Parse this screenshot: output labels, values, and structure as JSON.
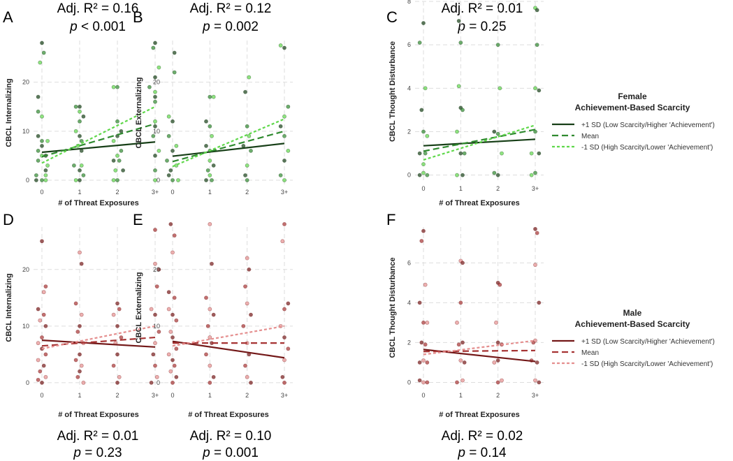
{
  "colors": {
    "female": [
      "#173f17",
      "#2f8a2f",
      "#5fd84a"
    ],
    "male": [
      "#731818",
      "#a63333",
      "#e58f8f"
    ]
  },
  "legends": [
    {
      "group": "female",
      "title1": "Female",
      "title2": "Achievement-Based Scarcity",
      "items": [
        "+1 SD (Low Scarcity/Higher 'Achievement')",
        "Mean",
        "-1 SD (High Scarcity/Lower 'Achievement')"
      ]
    },
    {
      "group": "male",
      "title1": "Male",
      "title2": "Achievement-Based Scarcity",
      "items": [
        "+1 SD (Low Scarcity/Higher 'Achievement')",
        "Mean",
        "-1 SD (High Scarcity/Lower 'Achievement')"
      ]
    }
  ],
  "chart_data": [
    {
      "type": "scatter",
      "panel": "A",
      "group": "female",
      "title": "Adj. R² = 0.16",
      "p": "p < 0.001",
      "xlabel": "# of Threat Exposures",
      "ylabel": "CBCL Internalizing",
      "xticks": [
        "0",
        "1",
        "2",
        "3+"
      ],
      "yticks": [
        0,
        10,
        20
      ],
      "ylim": [
        -1,
        28.5
      ],
      "lines": [
        [
          5.7,
          7.8
        ],
        [
          4.8,
          11.5
        ],
        [
          3.5,
          15
        ]
      ],
      "points": [
        [
          0,
          28
        ],
        [
          0.05,
          26
        ],
        [
          -0.05,
          24
        ],
        [
          -0.1,
          17
        ],
        [
          -0.1,
          14
        ],
        [
          0,
          13
        ],
        [
          -0.1,
          9
        ],
        [
          0,
          8
        ],
        [
          0.15,
          8
        ],
        [
          0,
          7
        ],
        [
          -0.1,
          6
        ],
        [
          0,
          5
        ],
        [
          0.1,
          5
        ],
        [
          -0.1,
          4
        ],
        [
          0.15,
          3
        ],
        [
          0.1,
          2
        ],
        [
          -0.15,
          1
        ],
        [
          0.1,
          1
        ],
        [
          -0.15,
          0
        ],
        [
          0,
          0
        ],
        [
          0.1,
          0
        ],
        [
          1,
          15
        ],
        [
          0.9,
          15
        ],
        [
          1,
          14
        ],
        [
          1.1,
          13
        ],
        [
          1,
          12
        ],
        [
          0.9,
          10
        ],
        [
          1,
          9
        ],
        [
          1.05,
          8
        ],
        [
          0.95,
          7
        ],
        [
          1.05,
          6
        ],
        [
          0.85,
          3
        ],
        [
          1.05,
          3
        ],
        [
          1,
          2
        ],
        [
          1.1,
          1
        ],
        [
          0.9,
          0
        ],
        [
          1,
          0
        ],
        [
          2,
          19
        ],
        [
          1.9,
          19
        ],
        [
          2.1,
          10
        ],
        [
          2,
          12
        ],
        [
          1.9,
          8
        ],
        [
          2,
          9
        ],
        [
          2.1,
          6
        ],
        [
          2,
          5
        ],
        [
          1.9,
          4
        ],
        [
          2.05,
          4
        ],
        [
          1.95,
          2
        ],
        [
          2.15,
          2
        ],
        [
          2,
          0
        ],
        [
          1.9,
          0
        ],
        [
          3,
          28
        ],
        [
          2.95,
          27
        ],
        [
          3.1,
          23
        ],
        [
          3,
          21
        ],
        [
          2.85,
          19
        ],
        [
          3,
          18
        ],
        [
          3,
          17
        ],
        [
          3,
          16
        ],
        [
          3,
          12
        ],
        [
          3,
          11
        ],
        [
          2.95,
          9
        ],
        [
          3.1,
          6
        ],
        [
          3,
          5
        ],
        [
          3,
          2
        ],
        [
          3,
          0
        ]
      ]
    },
    {
      "type": "scatter",
      "panel": "B",
      "group": "female",
      "title": "Adj. R² = 0.12",
      "p": "p = 0.002",
      "xlabel": "",
      "ylabel": "CBCL Externalizing",
      "xticks": [
        "0",
        "1",
        "2",
        "3+"
      ],
      "yticks": [
        0,
        10,
        20
      ],
      "ylim": [
        -1,
        28.5
      ],
      "lines": [
        [
          4.9,
          7.5
        ],
        [
          3.8,
          10
        ],
        [
          2.8,
          12.5
        ]
      ],
      "points": [
        [
          0.05,
          26
        ],
        [
          0.05,
          22
        ],
        [
          -0.1,
          13
        ],
        [
          0,
          12
        ],
        [
          -0.1,
          9
        ],
        [
          0.1,
          7
        ],
        [
          0,
          6
        ],
        [
          -0.15,
          4
        ],
        [
          0.1,
          3
        ],
        [
          -0.1,
          1
        ],
        [
          0,
          0
        ],
        [
          0.15,
          0
        ],
        [
          -0.05,
          2
        ],
        [
          1,
          17
        ],
        [
          1.1,
          17
        ],
        [
          0.9,
          12
        ],
        [
          1,
          11
        ],
        [
          1.05,
          9
        ],
        [
          0.9,
          7
        ],
        [
          1,
          6
        ],
        [
          1,
          4
        ],
        [
          1.1,
          3
        ],
        [
          0.95,
          2
        ],
        [
          1,
          1
        ],
        [
          0.9,
          0
        ],
        [
          1.05,
          0
        ],
        [
          2.05,
          21
        ],
        [
          1.95,
          18
        ],
        [
          2,
          11
        ],
        [
          2.05,
          9
        ],
        [
          1.9,
          7
        ],
        [
          2.1,
          6
        ],
        [
          2,
          3
        ],
        [
          1.95,
          1
        ],
        [
          2,
          0
        ],
        [
          2.9,
          27.5
        ],
        [
          3,
          27
        ],
        [
          3.1,
          15
        ],
        [
          3,
          13
        ],
        [
          2.9,
          11
        ],
        [
          3,
          9
        ],
        [
          3.1,
          6
        ],
        [
          3,
          4
        ],
        [
          2.9,
          1
        ],
        [
          3,
          0
        ]
      ]
    },
    {
      "type": "scatter",
      "panel": "C",
      "group": "female",
      "title": "Adj. R² = 0.01",
      "p": "p = 0.25",
      "xlabel": "# of Threat Exposures",
      "ylabel": "CBCL Thought Disturbance",
      "xticks": [
        "0",
        "1",
        "2",
        "3+"
      ],
      "yticks": [
        0,
        2,
        4,
        6,
        8
      ],
      "ylim": [
        -0.3,
        8
      ],
      "lines": [
        [
          1.35,
          1.65
        ],
        [
          1.1,
          2.1
        ],
        [
          0.7,
          2.3
        ]
      ],
      "points": [
        [
          0,
          7
        ],
        [
          -0.1,
          6.1
        ],
        [
          0.05,
          4
        ],
        [
          -0.05,
          3
        ],
        [
          0,
          2
        ],
        [
          0.1,
          1.8
        ],
        [
          -0.1,
          1
        ],
        [
          0.05,
          1
        ],
        [
          0,
          0.5
        ],
        [
          -0.1,
          0
        ],
        [
          0.1,
          0
        ],
        [
          0,
          0.1
        ],
        [
          0.95,
          7.1
        ],
        [
          1,
          6.1
        ],
        [
          0.95,
          4.1
        ],
        [
          1,
          3.1
        ],
        [
          1.05,
          3
        ],
        [
          0.9,
          2
        ],
        [
          1,
          1
        ],
        [
          1.1,
          1
        ],
        [
          0.9,
          0
        ],
        [
          1.05,
          0
        ],
        [
          2,
          6
        ],
        [
          2.05,
          4
        ],
        [
          1.9,
          2
        ],
        [
          2,
          1.9
        ],
        [
          2.1,
          1
        ],
        [
          2,
          0
        ],
        [
          1.9,
          0.1
        ],
        [
          3,
          7.7
        ],
        [
          3.05,
          7.6
        ],
        [
          3.05,
          6
        ],
        [
          3,
          4
        ],
        [
          3.1,
          3.9
        ],
        [
          3,
          2
        ],
        [
          2.9,
          1
        ],
        [
          3.1,
          1
        ],
        [
          3,
          0.1
        ],
        [
          2.9,
          0
        ]
      ]
    },
    {
      "type": "scatter",
      "panel": "D",
      "group": "male",
      "title": "Adj. R² = 0.01",
      "p": "p = 0.23",
      "xlabel": "# of Threat Exposures",
      "ylabel": "CBCL Internalizing",
      "xticks": [
        "0",
        "1",
        "2",
        "3+"
      ],
      "yticks": [
        0,
        10,
        20
      ],
      "ylim": [
        -1,
        27.5
      ],
      "lines": [
        [
          7.5,
          6.3
        ],
        [
          6.5,
          8
        ],
        [
          6,
          10
        ]
      ],
      "points": [
        [
          0,
          25
        ],
        [
          0.1,
          17
        ],
        [
          0.05,
          16
        ],
        [
          -0.1,
          13
        ],
        [
          0.05,
          12
        ],
        [
          -0.05,
          11
        ],
        [
          0.1,
          10
        ],
        [
          0,
          8
        ],
        [
          -0.1,
          7
        ],
        [
          0,
          6
        ],
        [
          0.1,
          5
        ],
        [
          -0.1,
          4
        ],
        [
          0.05,
          3
        ],
        [
          -0.05,
          2
        ],
        [
          0.1,
          1
        ],
        [
          0,
          0
        ],
        [
          -0.1,
          0.5
        ],
        [
          1,
          23
        ],
        [
          1.05,
          21
        ],
        [
          0.9,
          14
        ],
        [
          1.05,
          12
        ],
        [
          1,
          10
        ],
        [
          0.95,
          9
        ],
        [
          1.1,
          7
        ],
        [
          1,
          5
        ],
        [
          0.9,
          4
        ],
        [
          1.05,
          3
        ],
        [
          1,
          2
        ],
        [
          0.95,
          1
        ],
        [
          1.1,
          0
        ],
        [
          2,
          14
        ],
        [
          2.05,
          13
        ],
        [
          1.9,
          12
        ],
        [
          2,
          10
        ],
        [
          2.1,
          8
        ],
        [
          1.95,
          7
        ],
        [
          2,
          5
        ],
        [
          1.9,
          3
        ],
        [
          2.05,
          1
        ],
        [
          2,
          0
        ],
        [
          3,
          27
        ],
        [
          3,
          21
        ],
        [
          3.1,
          20
        ],
        [
          3.05,
          17
        ],
        [
          2.9,
          13
        ],
        [
          3,
          12
        ],
        [
          3.1,
          9
        ],
        [
          3,
          7
        ],
        [
          2.95,
          5
        ],
        [
          3,
          3
        ],
        [
          3.05,
          1
        ],
        [
          2.9,
          0
        ]
      ]
    },
    {
      "type": "scatter",
      "panel": "E",
      "group": "male",
      "title": "Adj. R² = 0.10",
      "p": "p = 0.001",
      "xlabel": "# of Threat Exposures",
      "ylabel": "CBCL Externalizing",
      "xticks": [
        "0",
        "1",
        "2",
        "3+"
      ],
      "yticks": [
        0,
        10,
        20
      ],
      "ylim": [
        -1,
        27.5
      ],
      "lines": [
        [
          7.3,
          4.4
        ],
        [
          7,
          7
        ],
        [
          6.5,
          10
        ]
      ],
      "points": [
        [
          -0.05,
          28
        ],
        [
          0.05,
          26
        ],
        [
          0,
          23
        ],
        [
          -0.1,
          16
        ],
        [
          0.05,
          15
        ],
        [
          -0.1,
          13
        ],
        [
          0,
          12
        ],
        [
          0.1,
          11
        ],
        [
          -0.05,
          9
        ],
        [
          0,
          8
        ],
        [
          0.1,
          6
        ],
        [
          -0.1,
          5
        ],
        [
          0,
          4
        ],
        [
          0.05,
          3
        ],
        [
          -0.05,
          2
        ],
        [
          0.1,
          1
        ],
        [
          0,
          0
        ],
        [
          1,
          28
        ],
        [
          1.05,
          21
        ],
        [
          0.9,
          15
        ],
        [
          1,
          13
        ],
        [
          1.1,
          12
        ],
        [
          0.95,
          10
        ],
        [
          1,
          8
        ],
        [
          1.05,
          7
        ],
        [
          0.9,
          5
        ],
        [
          1,
          3
        ],
        [
          1.1,
          1
        ],
        [
          1,
          0
        ],
        [
          2,
          22
        ],
        [
          2.05,
          20
        ],
        [
          1.95,
          17
        ],
        [
          2,
          14
        ],
        [
          2.1,
          12
        ],
        [
          1.9,
          10
        ],
        [
          2,
          7
        ],
        [
          2.05,
          5
        ],
        [
          1.95,
          3
        ],
        [
          2,
          1
        ],
        [
          2.1,
          0
        ],
        [
          3,
          28
        ],
        [
          2.95,
          25
        ],
        [
          3.1,
          14
        ],
        [
          3,
          13
        ],
        [
          2.9,
          10
        ],
        [
          3,
          8
        ],
        [
          3.1,
          6
        ],
        [
          3,
          4
        ],
        [
          2.95,
          1
        ],
        [
          3,
          0
        ]
      ]
    },
    {
      "type": "scatter",
      "panel": "F",
      "group": "male",
      "title": "Adj. R² = 0.02",
      "p": "p = 0.14",
      "xlabel": "# of Threat Exposures",
      "ylabel": "CBCL Thought Disturbance",
      "xticks": [
        "0",
        "1",
        "2",
        "3+"
      ],
      "yticks": [
        0,
        2,
        4,
        6
      ],
      "ylim": [
        -0.3,
        7.8
      ],
      "lines": [
        [
          1.65,
          1.05
        ],
        [
          1.55,
          1.6
        ],
        [
          1.4,
          2.1
        ]
      ],
      "points": [
        [
          0,
          7.6
        ],
        [
          -0.05,
          7.1
        ],
        [
          0.05,
          4.9
        ],
        [
          -0.1,
          4
        ],
        [
          0,
          3
        ],
        [
          0.1,
          3
        ],
        [
          -0.05,
          2
        ],
        [
          0.05,
          1.9
        ],
        [
          0,
          1.1
        ],
        [
          -0.1,
          1
        ],
        [
          0.1,
          1
        ],
        [
          0,
          0
        ],
        [
          -0.1,
          0.1
        ],
        [
          0.1,
          0
        ],
        [
          1,
          6.1
        ],
        [
          1.05,
          6
        ],
        [
          1,
          4
        ],
        [
          0.9,
          3
        ],
        [
          1.05,
          2
        ],
        [
          0.95,
          1.9
        ],
        [
          1,
          1.1
        ],
        [
          1.1,
          1
        ],
        [
          0.9,
          0
        ],
        [
          1.05,
          0.1
        ],
        [
          2,
          5
        ],
        [
          2.05,
          4.9
        ],
        [
          1.95,
          3
        ],
        [
          2,
          2
        ],
        [
          2.1,
          1.9
        ],
        [
          1.9,
          1
        ],
        [
          2,
          1.1
        ],
        [
          2,
          0
        ],
        [
          2.1,
          0.1
        ],
        [
          3,
          7.7
        ],
        [
          3.05,
          7.5
        ],
        [
          3,
          5.9
        ],
        [
          3.1,
          4
        ],
        [
          2.95,
          2
        ],
        [
          3,
          2.1
        ],
        [
          3.05,
          1
        ],
        [
          2.9,
          1.1
        ],
        [
          3,
          0.1
        ],
        [
          3.1,
          0
        ]
      ]
    }
  ]
}
